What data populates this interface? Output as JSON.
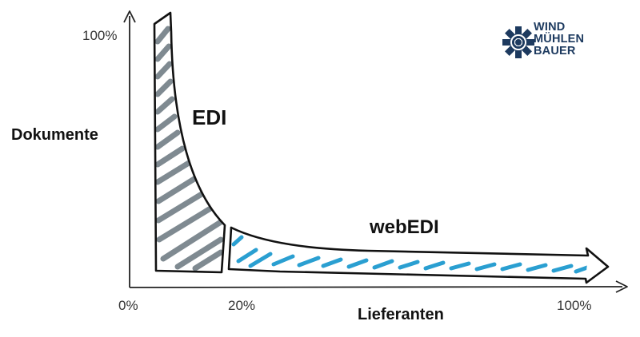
{
  "axes": {
    "y_label": "Dokumente",
    "x_label": "Lieferanten",
    "y_tick_top": "100%",
    "x_ticks": [
      "0%",
      "20%",
      "100%"
    ]
  },
  "regions": {
    "edi_label": "EDI",
    "webedi_label": "webEDI"
  },
  "logo": {
    "line1": "WIND",
    "line2": "MÜHLEN",
    "line3": "BAUER"
  },
  "colors": {
    "outline": "#111111",
    "edi_hatch": "#7f8a91",
    "webedi_hatch": "#2a9fd1",
    "logo_navy": "#1d3a5f"
  }
}
